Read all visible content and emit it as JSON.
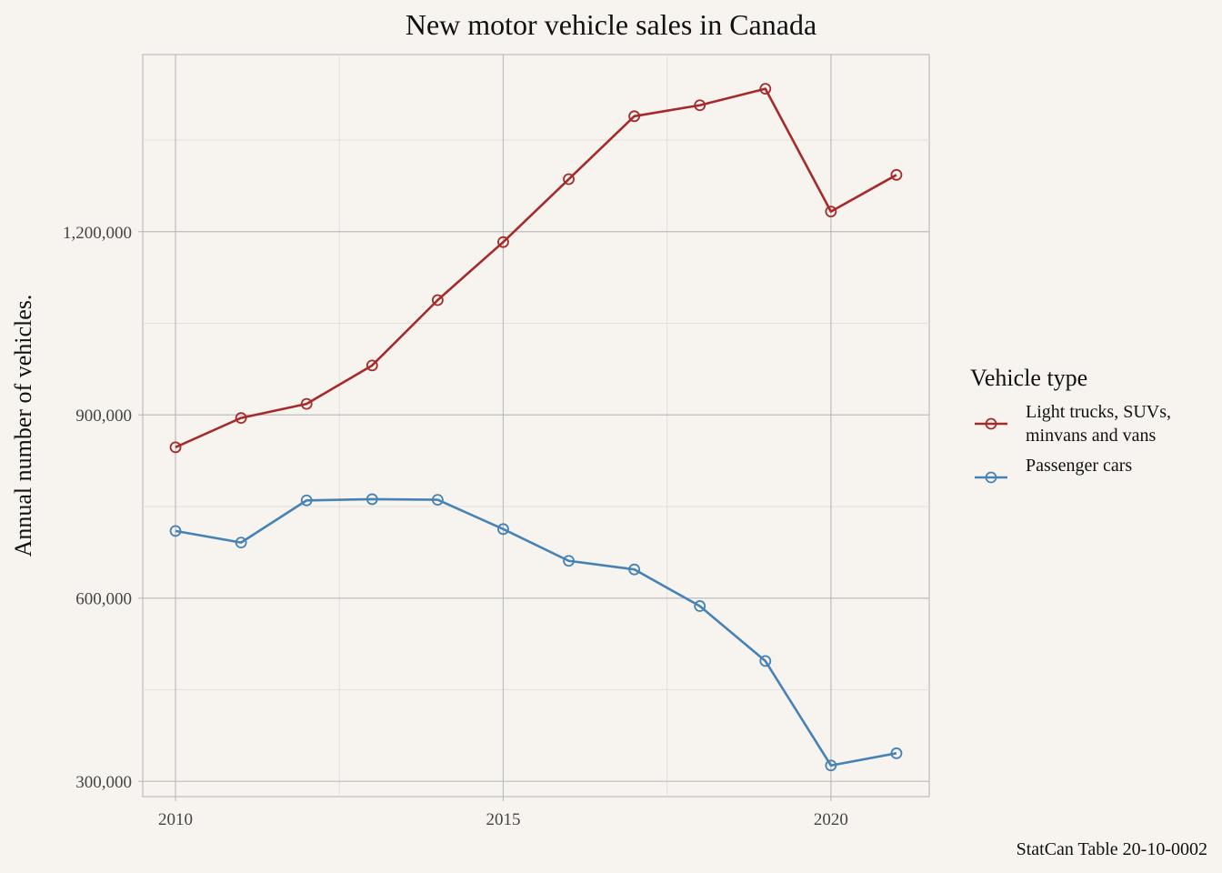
{
  "chart_data": {
    "type": "line",
    "title": "New motor vehicle sales in Canada",
    "xlabel": "",
    "ylabel": "Annual number of vehicles.",
    "caption": "StatCan Table 20-10-0002",
    "x": [
      2010,
      2011,
      2012,
      2013,
      2014,
      2015,
      2016,
      2017,
      2018,
      2019,
      2020,
      2021
    ],
    "xlim": [
      2009.5,
      2021.5
    ],
    "ylim": [
      275000,
      1490000
    ],
    "x_ticks": [
      2010,
      2015,
      2020
    ],
    "x_tick_labels": [
      "2010",
      "2015",
      "2020"
    ],
    "y_ticks": [
      300000,
      600000,
      900000,
      1200000
    ],
    "y_tick_labels": [
      "300,000",
      "600,000",
      "900,000",
      "1,200,000"
    ],
    "grid": true,
    "legend_title": "Vehicle type",
    "legend_position": "right",
    "series": [
      {
        "name_lines": [
          "Light trucks, SUVs,",
          "minvans and vans"
        ],
        "color": "#a52a2a",
        "marker": "open-circle",
        "values": [
          847000,
          895000,
          918000,
          981000,
          1088000,
          1183000,
          1286000,
          1389000,
          1407000,
          1434000,
          1233000,
          1293000
        ]
      },
      {
        "name_lines": [
          "Passenger cars"
        ],
        "color": "#4682b4",
        "marker": "open-circle",
        "values": [
          710000,
          691000,
          760000,
          762000,
          761000,
          713000,
          661000,
          647000,
          587000,
          497000,
          326000,
          346000
        ]
      }
    ]
  }
}
